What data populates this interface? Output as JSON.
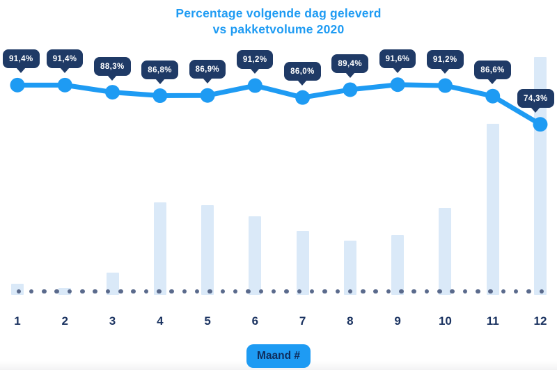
{
  "chart_data": {
    "type": "line",
    "title": "Percentage volgende dag geleverd",
    "subtitle": "vs pakketvolume 2020",
    "categories": [
      "1",
      "2",
      "3",
      "4",
      "5",
      "6",
      "7",
      "8",
      "9",
      "10",
      "11",
      "12"
    ],
    "xlabel": "Maand #",
    "ylabel": "",
    "legend_position": "none",
    "grid": "dotted baseline only",
    "series": [
      {
        "name": "Percentage volgende dag geleverd",
        "type": "line",
        "unit": "%",
        "values": [
          91.4,
          91.4,
          88.3,
          86.8,
          86.9,
          91.2,
          86.0,
          89.4,
          91.6,
          91.2,
          86.6,
          74.3
        ],
        "labels": [
          "91,4%",
          "91,4%",
          "88,3%",
          "86,8%",
          "86,9%",
          "91,2%",
          "86,0%",
          "89,4%",
          "91,6%",
          "91,2%",
          "86,6%",
          "74,3%"
        ]
      },
      {
        "name": "Pakketvolume",
        "type": "bar",
        "unit": "relative, unlabeled (% of max month)",
        "values": [
          4.7,
          2.9,
          9.4,
          38.9,
          37.7,
          33.0,
          26.9,
          22.8,
          25.1,
          36.5,
          71.9,
          100
        ]
      }
    ],
    "colors": {
      "line": "#1E9BF3",
      "bar": "#DAE9F8",
      "label_badge_bg": "#1F3A66",
      "label_badge_text": "#ffffff",
      "axis_text": "#1B3361",
      "baseline_dots": "#5A6A8C",
      "title_text": "#1E9BF3",
      "xlabel_badge_bg": "#1E9BF3",
      "xlabel_badge_text": "#0F2D5C"
    }
  }
}
